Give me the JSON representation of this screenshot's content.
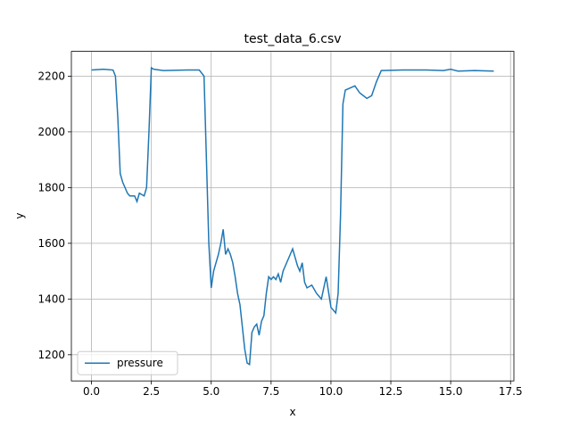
{
  "chart_data": {
    "type": "line",
    "title": "test_data_6.csv",
    "xlabel": "x",
    "ylabel": "y",
    "x": [
      0,
      0.5,
      0.9,
      1.0,
      1.1,
      1.2,
      1.3,
      1.4,
      1.5,
      1.6,
      1.8,
      1.9,
      2.0,
      2.2,
      2.3,
      2.4,
      2.5,
      2.6,
      3.0,
      4.0,
      4.5,
      4.7,
      4.8,
      4.9,
      5.0,
      5.1,
      5.2,
      5.3,
      5.4,
      5.5,
      5.6,
      5.7,
      5.8,
      5.9,
      6.0,
      6.1,
      6.2,
      6.3,
      6.4,
      6.5,
      6.6,
      6.7,
      6.8,
      6.9,
      7.0,
      7.1,
      7.2,
      7.3,
      7.4,
      7.5,
      7.6,
      7.7,
      7.8,
      7.9,
      8.0,
      8.2,
      8.4,
      8.5,
      8.6,
      8.7,
      8.8,
      8.9,
      9.0,
      9.2,
      9.4,
      9.6,
      9.8,
      10.0,
      10.2,
      10.3,
      10.4,
      10.5,
      10.6,
      11.0,
      11.2,
      11.5,
      11.7,
      11.9,
      12.1,
      13.0,
      14.0,
      14.7,
      15.0,
      15.3,
      16.0,
      16.8
    ],
    "series": [
      {
        "name": "pressure",
        "color": "#1f77b4",
        "values": [
          2222,
          2225,
          2222,
          2200,
          2050,
          1850,
          1820,
          1800,
          1780,
          1770,
          1770,
          1750,
          1780,
          1770,
          1800,
          2000,
          2230,
          2225,
          2220,
          2222,
          2222,
          2200,
          1900,
          1600,
          1440,
          1500,
          1530,
          1560,
          1600,
          1650,
          1560,
          1580,
          1560,
          1530,
          1480,
          1420,
          1380,
          1300,
          1220,
          1170,
          1165,
          1280,
          1300,
          1310,
          1270,
          1320,
          1340,
          1420,
          1480,
          1470,
          1480,
          1470,
          1490,
          1460,
          1500,
          1540,
          1580,
          1550,
          1520,
          1500,
          1530,
          1460,
          1440,
          1450,
          1420,
          1400,
          1480,
          1370,
          1350,
          1420,
          1700,
          2100,
          2150,
          2165,
          2140,
          2120,
          2130,
          2180,
          2220,
          2222,
          2222,
          2220,
          2225,
          2218,
          2220,
          2218
        ]
      }
    ],
    "xlim": [
      -0.84,
      17.64
    ],
    "ylim": [
      1106,
      2289
    ],
    "xticks": [
      {
        "value": 0,
        "label": "0.0"
      },
      {
        "value": 2.5,
        "label": "2.5"
      },
      {
        "value": 5,
        "label": "5.0"
      },
      {
        "value": 7.5,
        "label": "7.5"
      },
      {
        "value": 10,
        "label": "10.0"
      },
      {
        "value": 12.5,
        "label": "12.5"
      },
      {
        "value": 15,
        "label": "15.0"
      },
      {
        "value": 17.5,
        "label": "17.5"
      }
    ],
    "yticks": [
      1200,
      1400,
      1600,
      1800,
      2000,
      2200
    ],
    "grid": true,
    "legend": "lower left"
  }
}
